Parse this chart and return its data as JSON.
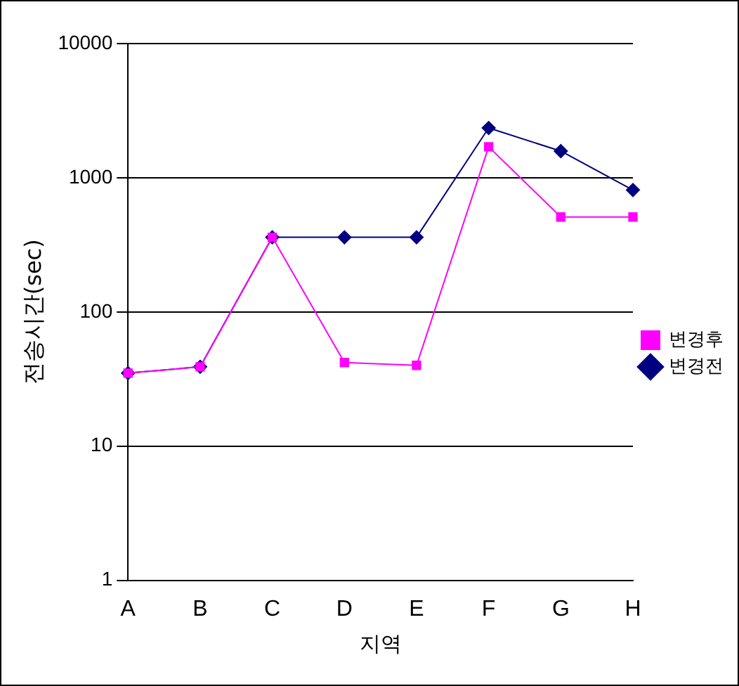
{
  "chart_data": {
    "type": "line",
    "xlabel": "지역",
    "ylabel": "전송시간(sec)",
    "categories": [
      "A",
      "B",
      "C",
      "D",
      "E",
      "F",
      "G",
      "H"
    ],
    "series": [
      {
        "name": "변경전",
        "color": "#000080",
        "marker": "diamond",
        "values": [
          35,
          39,
          360,
          360,
          360,
          2350,
          1580,
          810
        ]
      },
      {
        "name": "변경후",
        "color": "#ff00ff",
        "marker": "square",
        "values": [
          35,
          39,
          360,
          42,
          40,
          1700,
          510,
          510
        ]
      }
    ],
    "log": "y",
    "ylim": [
      1,
      10000
    ],
    "yticks": [
      1,
      10,
      100,
      1000,
      10000
    ],
    "grid": "y",
    "legend": "right",
    "line_style": "solid"
  }
}
